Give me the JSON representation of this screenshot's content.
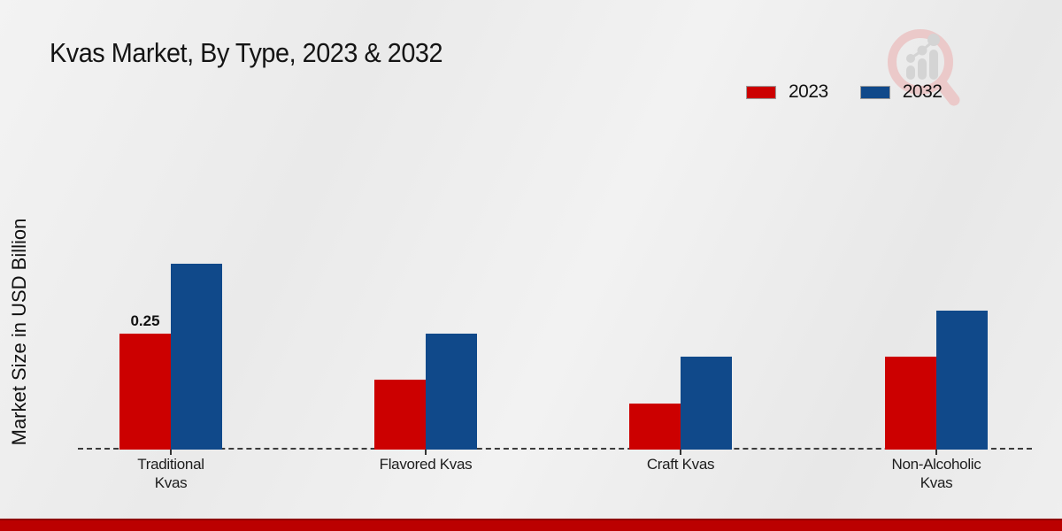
{
  "header": {
    "title": "Kvas Market, By Type, 2023 & 2032"
  },
  "axes": {
    "ylabel": "Market Size in USD Billion"
  },
  "legend": {
    "items": [
      {
        "label": "2023",
        "color": "#cc0000"
      },
      {
        "label": "2032",
        "color": "#10498a"
      }
    ]
  },
  "colors": {
    "series_2023": "#cc0000",
    "series_2032": "#10498a",
    "bottom_band": "#bb0000",
    "baseline": "#3c3c3c"
  },
  "chart_data": {
    "type": "bar",
    "title": "Kvas Market, By Type, 2023 & 2032",
    "xlabel": "",
    "ylabel": "Market Size in USD Billion",
    "categories": [
      "Traditional Kvas",
      "Flavored Kvas",
      "Craft Kvas",
      "Non-Alcoholic Kvas"
    ],
    "series": [
      {
        "name": "2023",
        "color": "#cc0000",
        "values": [
          0.25,
          0.15,
          0.1,
          0.2
        ],
        "data_labels": [
          "0.25",
          "",
          "",
          ""
        ]
      },
      {
        "name": "2032",
        "color": "#10498a",
        "values": [
          0.4,
          0.25,
          0.2,
          0.3
        ],
        "data_labels": [
          "",
          "",
          "",
          ""
        ]
      }
    ],
    "ylim": [
      0,
      0.45
    ],
    "grid": false,
    "y_axis_ticks_visible": false,
    "legend_position": "top-right",
    "baseline_style": "dashed",
    "annotations": [
      "0.25 label above Traditional Kvas 2023 bar"
    ]
  },
  "watermark": {
    "name": "market-research-future-logo"
  }
}
